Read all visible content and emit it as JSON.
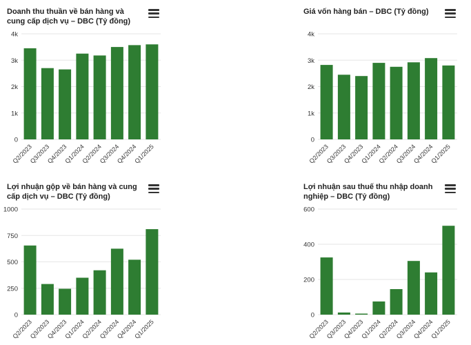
{
  "page": {
    "background": "#ffffff"
  },
  "colors": {
    "bar": "#2e7d32",
    "grid": "#e6e6e6",
    "axis_label": "#333333",
    "title": "#222222",
    "menu_icon": "#333333"
  },
  "icons": {
    "chart_menu": "hamburger-menu-icon"
  },
  "chart_data": [
    {
      "type": "bar",
      "title": "Doanh thu thuần về bán hàng và cung cấp dịch vụ – DBC (Tỷ đồng)",
      "categories": [
        "Q2/2023",
        "Q3/2023",
        "Q4/2023",
        "Q1/2024",
        "Q2/2024",
        "Q3/2024",
        "Q4/2024",
        "Q1/2025"
      ],
      "values": [
        3450,
        2700,
        2650,
        3250,
        3180,
        3500,
        3570,
        3600
      ],
      "ylim": [
        0,
        4000
      ],
      "ytick_values": [
        0,
        1000,
        2000,
        3000,
        4000
      ],
      "ytick_labels": [
        "0",
        "1k",
        "2k",
        "3k",
        "4k"
      ],
      "xlabel": "",
      "ylabel": "",
      "grid": true,
      "legend": false
    },
    {
      "type": "bar",
      "title": "Giá vốn hàng bán – DBC (Tỷ đồng)",
      "categories": [
        "Q2/2023",
        "Q3/2023",
        "Q4/2023",
        "Q1/2024",
        "Q2/2024",
        "Q3/2024",
        "Q4/2024",
        "Q1/2025"
      ],
      "values": [
        2820,
        2450,
        2400,
        2900,
        2750,
        2920,
        3080,
        2800
      ],
      "ylim": [
        0,
        4000
      ],
      "ytick_values": [
        0,
        1000,
        2000,
        3000,
        4000
      ],
      "ytick_labels": [
        "0",
        "1k",
        "2k",
        "3k",
        "4k"
      ],
      "xlabel": "",
      "ylabel": "",
      "grid": true,
      "legend": false
    },
    {
      "type": "bar",
      "title": "Lợi nhuận gộp về bán hàng và cung cấp dịch vụ – DBC (Tỷ đồng)",
      "categories": [
        "Q2/2023",
        "Q3/2023",
        "Q4/2023",
        "Q1/2024",
        "Q2/2024",
        "Q3/2024",
        "Q4/2024",
        "Q1/2025"
      ],
      "values": [
        655,
        290,
        245,
        350,
        420,
        625,
        520,
        810
      ],
      "ylim": [
        0,
        1000
      ],
      "ytick_values": [
        0,
        250,
        500,
        750,
        1000
      ],
      "ytick_labels": [
        "0",
        "250",
        "500",
        "750",
        "1000"
      ],
      "xlabel": "",
      "ylabel": "",
      "grid": true,
      "legend": false
    },
    {
      "type": "bar",
      "title": "Lợi nhuận sau thuế thu nhập doanh nghiệp – DBC (Tỷ đồng)",
      "categories": [
        "Q2/2023",
        "Q3/2023",
        "Q4/2023",
        "Q1/2024",
        "Q2/2024",
        "Q3/2024",
        "Q4/2024",
        "Q1/2025"
      ],
      "values": [
        325,
        12,
        6,
        75,
        145,
        305,
        240,
        505
      ],
      "ylim": [
        0,
        600
      ],
      "ytick_values": [
        0,
        200,
        400,
        600
      ],
      "ytick_labels": [
        "0",
        "200",
        "400",
        "600"
      ],
      "xlabel": "",
      "ylabel": "",
      "grid": true,
      "legend": false
    }
  ]
}
